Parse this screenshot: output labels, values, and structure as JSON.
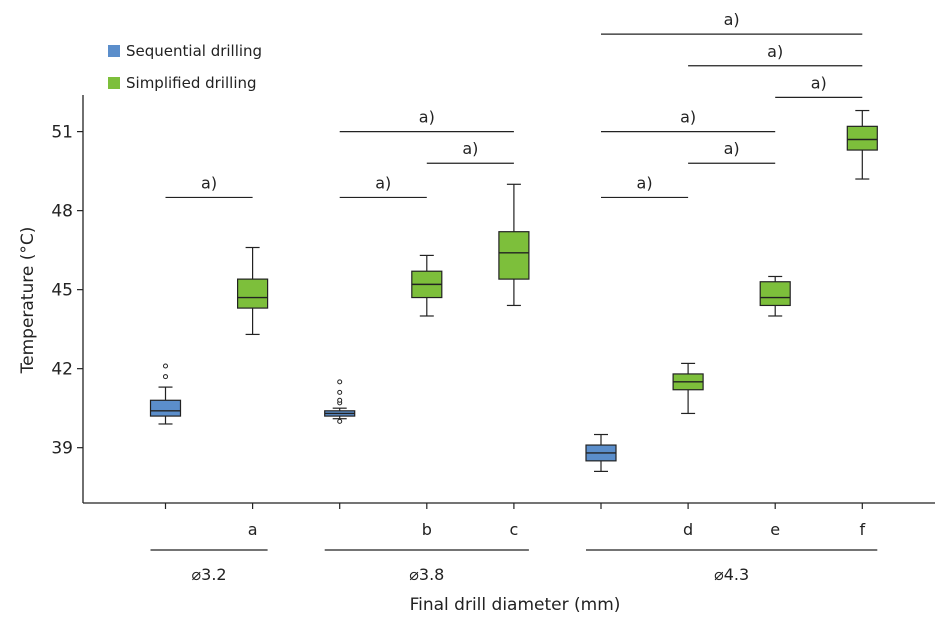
{
  "chart_data": {
    "type": "box",
    "xlabel": "Final drill diameter (mm)",
    "ylabel": "Temperature (°C)",
    "ylim": [
      36.9,
      52.2
    ],
    "yticks": [
      39,
      42,
      45,
      48,
      51
    ],
    "colors": {
      "sequential": "#5b8ecb",
      "simplified": "#7dbf3b"
    },
    "legend": {
      "position": "top-left",
      "items": [
        {
          "name": "Sequential drilling",
          "color_key": "sequential"
        },
        {
          "name": "Simplified drilling",
          "color_key": "simplified"
        }
      ]
    },
    "positions": [
      {
        "slot": 1,
        "label": ""
      },
      {
        "slot": 2,
        "label": "a"
      },
      {
        "slot": 3,
        "label": ""
      },
      {
        "slot": 4,
        "label": "b"
      },
      {
        "slot": 5,
        "label": "c"
      },
      {
        "slot": 6,
        "label": ""
      },
      {
        "slot": 7,
        "label": "d"
      },
      {
        "slot": 8,
        "label": "e"
      },
      {
        "slot": 9,
        "label": "f"
      }
    ],
    "groups": [
      {
        "label": "⌀3.2",
        "from": 1,
        "to": 2
      },
      {
        "label": "⌀3.8",
        "from": 3,
        "to": 5
      },
      {
        "label": "⌀4.3",
        "from": 6,
        "to": 9
      }
    ],
    "boxes": [
      {
        "slot": 1,
        "series": "sequential",
        "min": 39.9,
        "q1": 40.2,
        "median": 40.4,
        "q3": 40.8,
        "max": 41.3,
        "outliers": [
          41.7,
          42.1
        ]
      },
      {
        "slot": 2,
        "series": "simplified",
        "min": 43.3,
        "q1": 44.3,
        "median": 44.7,
        "q3": 45.4,
        "max": 46.6,
        "outliers": []
      },
      {
        "slot": 3,
        "series": "sequential",
        "min": 40.1,
        "q1": 40.2,
        "median": 40.3,
        "q3": 40.4,
        "max": 40.5,
        "outliers": [
          40.0,
          40.7,
          40.8,
          41.1,
          41.5
        ]
      },
      {
        "slot": 4,
        "series": "simplified",
        "min": 44.0,
        "q1": 44.7,
        "median": 45.2,
        "q3": 45.7,
        "max": 46.3,
        "outliers": []
      },
      {
        "slot": 5,
        "series": "simplified",
        "min": 44.4,
        "q1": 45.4,
        "median": 46.4,
        "q3": 47.2,
        "max": 49.0,
        "outliers": []
      },
      {
        "slot": 6,
        "series": "sequential",
        "min": 38.1,
        "q1": 38.5,
        "median": 38.8,
        "q3": 39.1,
        "max": 39.5,
        "outliers": []
      },
      {
        "slot": 7,
        "series": "simplified",
        "min": 40.3,
        "q1": 41.2,
        "median": 41.5,
        "q3": 41.8,
        "max": 42.2,
        "outliers": []
      },
      {
        "slot": 8,
        "series": "simplified",
        "min": 44.0,
        "q1": 44.4,
        "median": 44.7,
        "q3": 45.3,
        "max": 45.5,
        "outliers": []
      },
      {
        "slot": 9,
        "series": "simplified",
        "min": 49.2,
        "q1": 50.3,
        "median": 50.7,
        "q3": 51.2,
        "max": 51.8,
        "outliers": []
      }
    ],
    "significance": [
      {
        "from": 1,
        "to": 2,
        "y": 48.5,
        "label": "a)"
      },
      {
        "from": 3,
        "to": 4,
        "y": 48.5,
        "label": "a)"
      },
      {
        "from": 4,
        "to": 5,
        "y": 49.8,
        "label": "a)"
      },
      {
        "from": 3,
        "to": 5,
        "y": 51.0,
        "label": "a)"
      },
      {
        "from": 6,
        "to": 7,
        "y": 48.5,
        "label": "a)"
      },
      {
        "from": 7,
        "to": 8,
        "y": 49.8,
        "label": "a)"
      },
      {
        "from": 6,
        "to": 8,
        "y": 51.0,
        "label": "a)"
      },
      {
        "from": 8,
        "to": 9,
        "y": 52.3,
        "label": "a)"
      },
      {
        "from": 7,
        "to": 9,
        "y": 53.5,
        "label": "a)"
      },
      {
        "from": 6,
        "to": 9,
        "y": 54.7,
        "label": "a)"
      }
    ]
  }
}
